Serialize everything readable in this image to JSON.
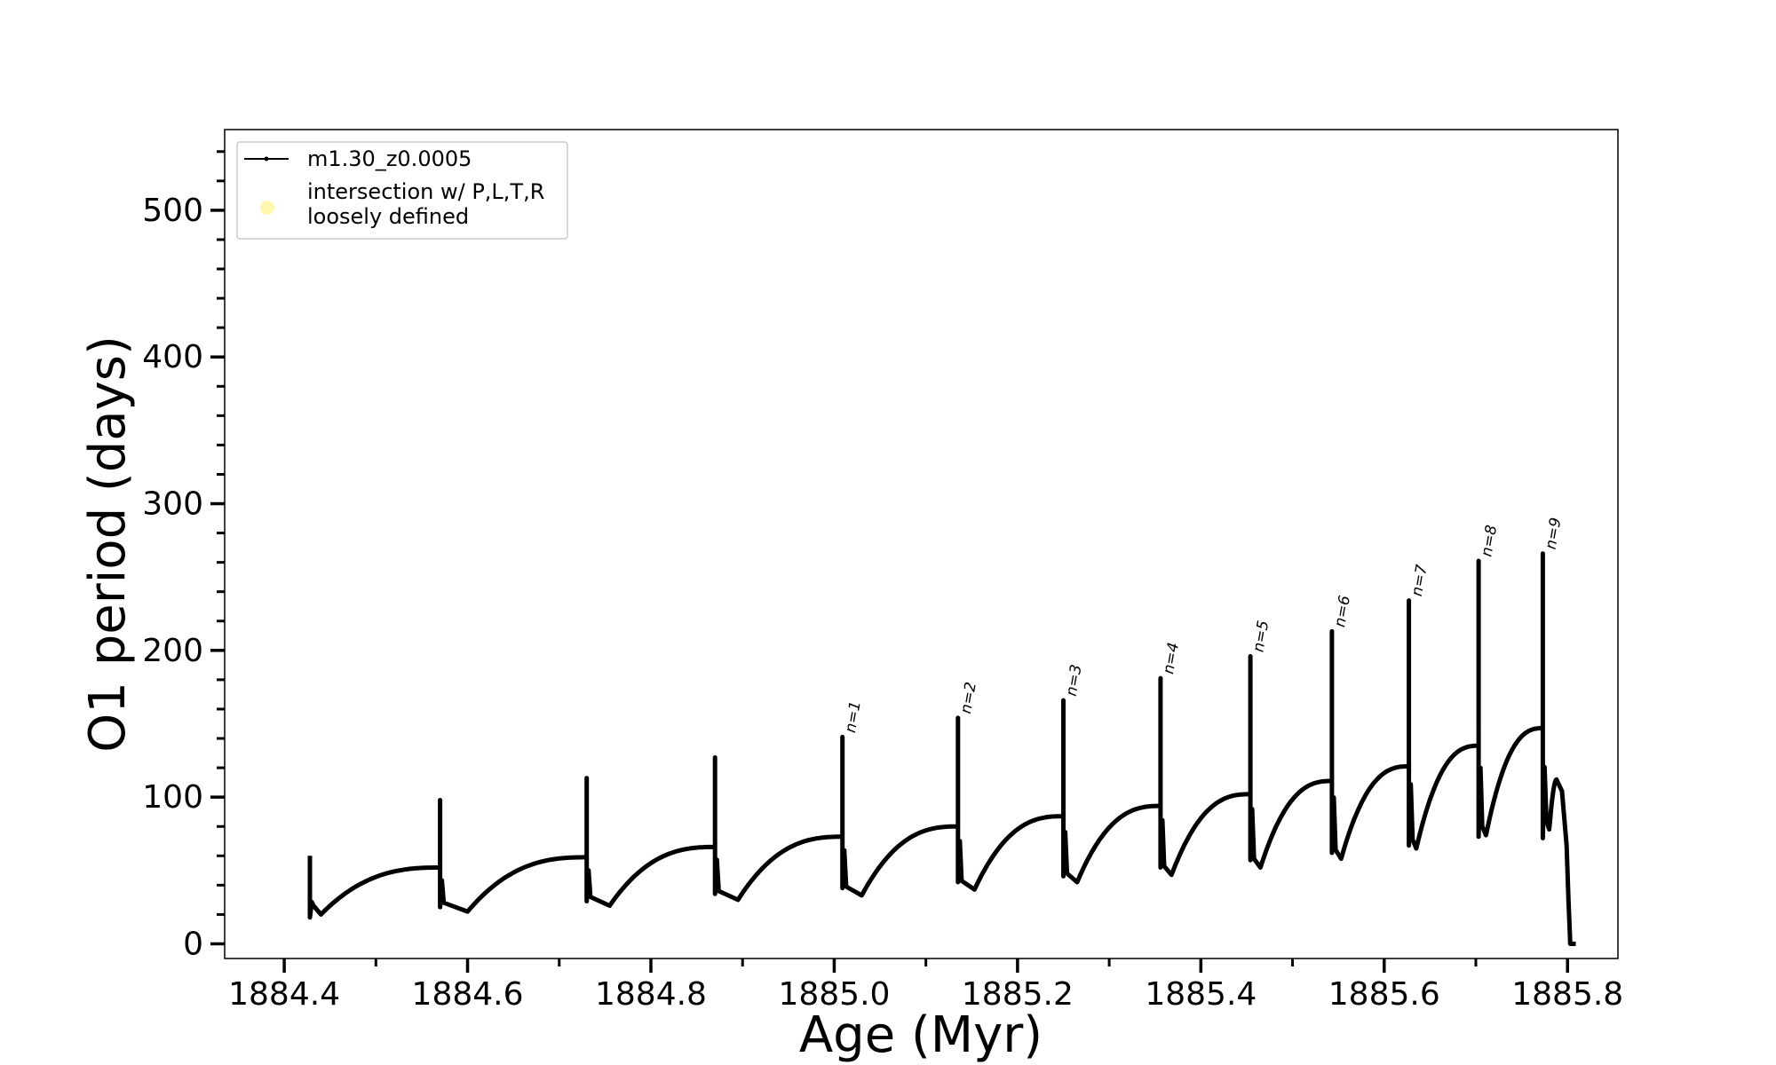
{
  "chart_data": {
    "type": "line",
    "xlabel": "Age (Myr)",
    "ylabel": "O1 period (days)",
    "xlim": [
      1884.335,
      1885.855
    ],
    "ylim": [
      -10,
      555
    ],
    "xticks": [
      1884.4,
      1884.6,
      1884.8,
      1885.0,
      1885.2,
      1885.4,
      1885.6,
      1885.8
    ],
    "xtick_labels": [
      "1884.4",
      "1884.6",
      "1884.8",
      "1885.0",
      "1885.2",
      "1885.4",
      "1885.6",
      "1885.8"
    ],
    "yticks": [
      0,
      100,
      200,
      300,
      400,
      500
    ],
    "ytick_labels": [
      "0",
      "100",
      "200",
      "300",
      "400",
      "500"
    ],
    "grid": false,
    "legend": {
      "placement": "upper-left",
      "entries": [
        {
          "label": "m1.30_z0.0005",
          "marker": "line-with-dots",
          "color": "#000000"
        },
        {
          "label_lines": [
            "intersection w/ P,L,T,R",
            "loosely defined"
          ],
          "marker": "circle",
          "color": "#fff6b0"
        }
      ]
    },
    "pulses": [
      {
        "t": 1884.428,
        "peak": 60,
        "drop": 18,
        "trough_t": 1884.44,
        "trough": 20,
        "end": 52,
        "label": ""
      },
      {
        "t": 1884.57,
        "peak": 98,
        "drop": 25,
        "trough_t": 1884.6,
        "trough": 22,
        "end": 59,
        "label": ""
      },
      {
        "t": 1884.73,
        "peak": 113,
        "drop": 29,
        "trough_t": 1884.755,
        "trough": 26,
        "end": 66,
        "label": ""
      },
      {
        "t": 1884.87,
        "peak": 127,
        "drop": 34,
        "trough_t": 1884.895,
        "trough": 30,
        "end": 73,
        "label": ""
      },
      {
        "t": 1885.009,
        "peak": 141,
        "drop": 38,
        "trough_t": 1885.03,
        "trough": 33,
        "end": 80,
        "label": "n=1"
      },
      {
        "t": 1885.135,
        "peak": 154,
        "drop": 42,
        "trough_t": 1885.153,
        "trough": 37,
        "end": 87,
        "label": "n=2"
      },
      {
        "t": 1885.25,
        "peak": 166,
        "drop": 46,
        "trough_t": 1885.265,
        "trough": 42,
        "end": 94,
        "label": "n=3"
      },
      {
        "t": 1885.356,
        "peak": 181,
        "drop": 52,
        "trough_t": 1885.368,
        "trough": 47,
        "end": 102,
        "label": "n=4"
      },
      {
        "t": 1885.454,
        "peak": 196,
        "drop": 57,
        "trough_t": 1885.465,
        "trough": 52,
        "end": 111,
        "label": "n=5"
      },
      {
        "t": 1885.543,
        "peak": 213,
        "drop": 62,
        "trough_t": 1885.553,
        "trough": 58,
        "end": 121,
        "label": "n=6"
      },
      {
        "t": 1885.627,
        "peak": 234,
        "drop": 67,
        "trough_t": 1885.635,
        "trough": 65,
        "end": 135,
        "label": "n=7"
      },
      {
        "t": 1885.703,
        "peak": 261,
        "drop": 73,
        "trough_t": 1885.711,
        "trough": 74,
        "end": 147,
        "label": "n=8"
      },
      {
        "t": 1885.773,
        "peak": 266,
        "drop": 72,
        "trough_t": 1885.78,
        "trough": 78,
        "end": 112,
        "label": "n=9"
      }
    ],
    "final_t": 1885.803,
    "final_value": 0
  }
}
